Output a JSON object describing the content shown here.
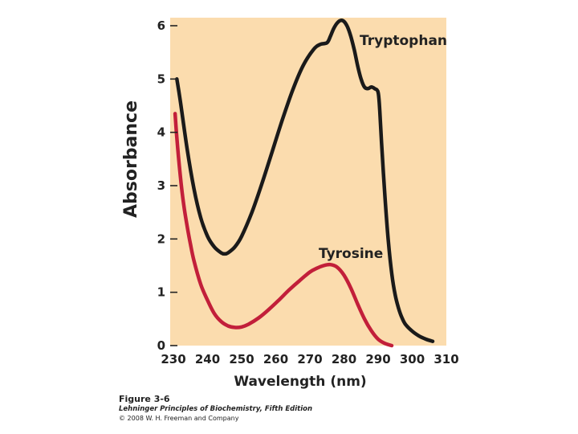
{
  "chart_data": {
    "type": "line",
    "xlabel": "Wavelength (nm)",
    "ylabel": "Absorbance",
    "xlim": [
      230,
      310
    ],
    "ylim": [
      0,
      6
    ],
    "xticks": [
      230,
      240,
      250,
      260,
      270,
      280,
      290,
      300,
      310
    ],
    "yticks": [
      0,
      1,
      2,
      3,
      4,
      5,
      6
    ],
    "grid": false,
    "background_color": "#fbdcae",
    "series": [
      {
        "name": "Tryptophan",
        "color": "#1a1a1a",
        "x": [
          231,
          232,
          234,
          236,
          238,
          240,
          242,
          244,
          245,
          246,
          248,
          250,
          253,
          256,
          259,
          262,
          265,
          268,
          271,
          273,
          275,
          276,
          277,
          278,
          279,
          280,
          281,
          282,
          283,
          284,
          285,
          286,
          287,
          288,
          289,
          290,
          290.5,
          291,
          292,
          293,
          294,
          295,
          296,
          297,
          298,
          300,
          302,
          304,
          306
        ],
        "y": [
          5.0,
          4.6,
          3.7,
          2.95,
          2.4,
          2.05,
          1.85,
          1.74,
          1.72,
          1.74,
          1.85,
          2.05,
          2.5,
          3.05,
          3.65,
          4.25,
          4.8,
          5.25,
          5.55,
          5.65,
          5.68,
          5.8,
          5.95,
          6.05,
          6.1,
          6.08,
          5.98,
          5.8,
          5.55,
          5.25,
          5.0,
          4.85,
          4.82,
          4.85,
          4.82,
          4.75,
          4.4,
          3.8,
          2.8,
          1.95,
          1.35,
          0.95,
          0.7,
          0.52,
          0.4,
          0.27,
          0.18,
          0.12,
          0.08
        ]
      },
      {
        "name": "Tyrosine",
        "color": "#c21f3a",
        "x": [
          230.5,
          231,
          232,
          233,
          234,
          235,
          236,
          238,
          240,
          242,
          244,
          246,
          248,
          250,
          252,
          255,
          258,
          261,
          264,
          267,
          270,
          272,
          274,
          276,
          278,
          280,
          282,
          284,
          286,
          288,
          290,
          292,
          294
        ],
        "y": [
          4.35,
          3.9,
          3.2,
          2.65,
          2.25,
          1.9,
          1.6,
          1.15,
          0.85,
          0.6,
          0.45,
          0.37,
          0.34,
          0.35,
          0.4,
          0.52,
          0.68,
          0.86,
          1.05,
          1.22,
          1.38,
          1.45,
          1.5,
          1.52,
          1.47,
          1.32,
          1.08,
          0.78,
          0.5,
          0.28,
          0.12,
          0.04,
          0.0
        ]
      }
    ]
  },
  "caption": {
    "figure": "Figure 3-6",
    "book": "Lehninger Principles of Biochemistry, Fifth Edition",
    "copyright": "© 2008 W. H. Freeman and Company"
  }
}
